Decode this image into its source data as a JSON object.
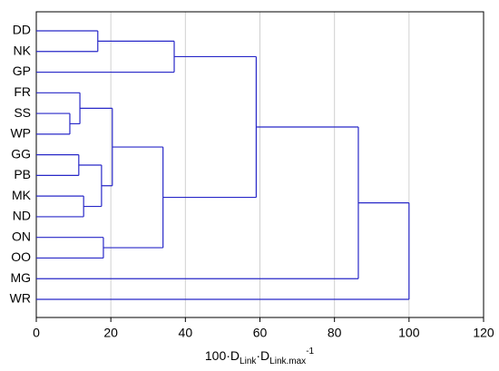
{
  "chart_data": {
    "type": "dendrogram",
    "color": "#2828c8",
    "grid": true,
    "xlim": [
      0,
      120
    ],
    "xticks": [
      0,
      20,
      40,
      60,
      80,
      100,
      120
    ],
    "x_label": [
      {
        "text": "100·D"
      },
      {
        "text": "Link",
        "shift": "sub"
      },
      {
        "text": "·D"
      },
      {
        "text": "Link.max",
        "shift": "sub"
      },
      {
        "text": "-1",
        "shift": "super"
      }
    ],
    "tree": {
      "height": 100,
      "children": [
        {
          "height": 86.4,
          "children": [
            {
              "height": 59,
              "children": [
                {
                  "height": 37,
                  "children": [
                    {
                      "height": 16.5,
                      "children": [
                        "DD",
                        "NK"
                      ]
                    },
                    "GP"
                  ]
                },
                {
                  "height": 34,
                  "children": [
                    {
                      "height": 20.4,
                      "children": [
                        {
                          "height": 11.7,
                          "children": [
                            "FR",
                            {
                              "height": 9,
                              "children": [
                                "SS",
                                "WP"
                              ]
                            }
                          ]
                        },
                        {
                          "height": 17.5,
                          "children": [
                            {
                              "height": 11.4,
                              "children": [
                                "GG",
                                "PB"
                              ]
                            },
                            {
                              "height": 12.7,
                              "children": [
                                "MK",
                                "ND"
                              ]
                            }
                          ]
                        }
                      ]
                    },
                    {
                      "height": 18,
                      "children": [
                        "ON",
                        "OO"
                      ]
                    }
                  ]
                }
              ]
            },
            "MG"
          ]
        },
        "WR"
      ]
    }
  }
}
